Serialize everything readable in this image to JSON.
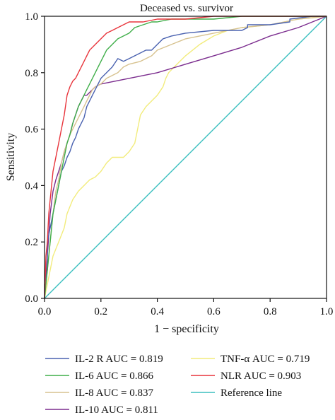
{
  "chart_data": {
    "type": "line",
    "title": "Deceased vs. survivor",
    "xlabel": "1 − specificity",
    "ylabel": "Sensitivity",
    "xlim": [
      0,
      1
    ],
    "ylim": [
      0,
      1
    ],
    "xticks": [
      "0.0",
      "0.2",
      "0.4",
      "0.6",
      "0.8",
      "1.0"
    ],
    "yticks": [
      "0.0",
      "0.2",
      "0.4",
      "0.6",
      "0.8",
      "1.0"
    ],
    "grid": false,
    "legend_position": "bottom",
    "series": [
      {
        "name": "IL-2 R AUC = 0.819",
        "color": "#4a62b0",
        "x": [
          0,
          0,
          0.01,
          0.01,
          0.02,
          0.03,
          0.04,
          0.05,
          0.06,
          0.07,
          0.08,
          0.09,
          0.1,
          0.11,
          0.12,
          0.13,
          0.14,
          0.15,
          0.16,
          0.17,
          0.18,
          0.19,
          0.2,
          0.22,
          0.24,
          0.26,
          0.28,
          0.3,
          0.32,
          0.34,
          0.36,
          0.38,
          0.4,
          0.42,
          0.45,
          0.5,
          0.6,
          0.7,
          0.72,
          0.72,
          0.8,
          0.87,
          0.87,
          0.95,
          1
        ],
        "y": [
          0,
          0.05,
          0.1,
          0.2,
          0.25,
          0.3,
          0.35,
          0.4,
          0.45,
          0.47,
          0.5,
          0.52,
          0.55,
          0.57,
          0.6,
          0.62,
          0.64,
          0.68,
          0.7,
          0.72,
          0.74,
          0.76,
          0.78,
          0.8,
          0.82,
          0.85,
          0.84,
          0.85,
          0.86,
          0.87,
          0.88,
          0.88,
          0.9,
          0.92,
          0.93,
          0.94,
          0.95,
          0.95,
          0.96,
          0.97,
          0.97,
          0.98,
          0.99,
          1,
          1
        ]
      },
      {
        "name": "IL-6 AUC = 0.866",
        "color": "#3fae49",
        "x": [
          0,
          0.01,
          0.02,
          0.03,
          0.04,
          0.05,
          0.06,
          0.07,
          0.08,
          0.09,
          0.1,
          0.11,
          0.12,
          0.13,
          0.14,
          0.15,
          0.16,
          0.18,
          0.2,
          0.21,
          0.22,
          0.24,
          0.26,
          0.28,
          0.3,
          0.32,
          0.35,
          0.38,
          0.4,
          0.45,
          0.5,
          0.6,
          0.7,
          0.8,
          0.9,
          1
        ],
        "y": [
          0,
          0.1,
          0.2,
          0.3,
          0.35,
          0.4,
          0.45,
          0.5,
          0.55,
          0.58,
          0.62,
          0.65,
          0.68,
          0.7,
          0.72,
          0.74,
          0.76,
          0.8,
          0.84,
          0.86,
          0.88,
          0.9,
          0.92,
          0.93,
          0.94,
          0.96,
          0.97,
          0.98,
          0.98,
          0.99,
          0.99,
          0.99,
          1,
          1,
          1,
          1
        ]
      },
      {
        "name": "IL-8 AUC = 0.837",
        "color": "#d7c28f",
        "x": [
          0,
          0.01,
          0.02,
          0.03,
          0.04,
          0.05,
          0.06,
          0.07,
          0.08,
          0.09,
          0.1,
          0.11,
          0.12,
          0.13,
          0.14,
          0.15,
          0.16,
          0.17,
          0.18,
          0.2,
          0.22,
          0.24,
          0.26,
          0.28,
          0.3,
          0.34,
          0.38,
          0.4,
          0.45,
          0.5,
          0.6,
          0.7,
          0.8,
          0.9,
          1
        ],
        "y": [
          0,
          0.1,
          0.2,
          0.3,
          0.38,
          0.42,
          0.48,
          0.52,
          0.55,
          0.58,
          0.6,
          0.62,
          0.64,
          0.66,
          0.68,
          0.7,
          0.72,
          0.74,
          0.75,
          0.76,
          0.78,
          0.79,
          0.8,
          0.82,
          0.83,
          0.84,
          0.86,
          0.88,
          0.9,
          0.92,
          0.94,
          0.96,
          0.97,
          0.99,
          1
        ]
      },
      {
        "name": "IL-10 AUC = 0.811",
        "color": "#7b2c8e",
        "x": [
          0,
          0.01,
          0.02,
          0.03,
          0.04,
          0.05,
          0.06,
          0.07,
          0.08,
          0.09,
          0.1,
          0.11,
          0.12,
          0.13,
          0.14,
          0.15,
          0.16,
          0.18,
          0.2,
          0.3,
          0.4,
          0.5,
          0.6,
          0.7,
          0.8,
          0.9,
          1
        ],
        "y": [
          0,
          0.15,
          0.3,
          0.38,
          0.42,
          0.45,
          0.48,
          0.52,
          0.55,
          0.58,
          0.62,
          0.65,
          0.68,
          0.7,
          0.72,
          0.72,
          0.73,
          0.75,
          0.76,
          0.78,
          0.8,
          0.83,
          0.86,
          0.89,
          0.93,
          0.96,
          1
        ]
      },
      {
        "name": "TNF-α AUC = 0.719",
        "color": "#f2ec7c",
        "x": [
          0,
          0.01,
          0.02,
          0.03,
          0.05,
          0.07,
          0.08,
          0.1,
          0.12,
          0.14,
          0.16,
          0.18,
          0.2,
          0.22,
          0.24,
          0.26,
          0.28,
          0.3,
          0.32,
          0.33,
          0.34,
          0.36,
          0.38,
          0.4,
          0.42,
          0.43,
          0.44,
          0.46,
          0.48,
          0.5,
          0.55,
          0.6,
          0.65,
          0.7,
          0.8,
          0.9,
          1
        ],
        "y": [
          0,
          0.05,
          0.1,
          0.15,
          0.2,
          0.25,
          0.3,
          0.35,
          0.38,
          0.4,
          0.42,
          0.43,
          0.45,
          0.48,
          0.5,
          0.5,
          0.5,
          0.52,
          0.55,
          0.6,
          0.65,
          0.68,
          0.7,
          0.72,
          0.75,
          0.78,
          0.8,
          0.82,
          0.84,
          0.86,
          0.9,
          0.93,
          0.95,
          0.96,
          0.97,
          0.99,
          1
        ]
      },
      {
        "name": "NLR AUC = 0.903",
        "color": "#e8343b",
        "x": [
          0,
          0.005,
          0.01,
          0.015,
          0.02,
          0.03,
          0.04,
          0.05,
          0.06,
          0.07,
          0.08,
          0.09,
          0.1,
          0.11,
          0.12,
          0.13,
          0.14,
          0.15,
          0.16,
          0.18,
          0.2,
          0.22,
          0.24,
          0.26,
          0.28,
          0.3,
          0.35,
          0.4,
          0.5,
          0.6,
          0.7,
          0.8,
          0.9,
          1
        ],
        "y": [
          0,
          0.15,
          0.2,
          0.3,
          0.35,
          0.45,
          0.5,
          0.55,
          0.6,
          0.65,
          0.72,
          0.75,
          0.77,
          0.78,
          0.8,
          0.82,
          0.84,
          0.86,
          0.88,
          0.9,
          0.92,
          0.94,
          0.95,
          0.96,
          0.97,
          0.98,
          0.98,
          0.99,
          0.99,
          1,
          1,
          1,
          1,
          1
        ]
      },
      {
        "name": "Reference line",
        "color": "#3bbfbf",
        "x": [
          0,
          1
        ],
        "y": [
          0,
          1
        ]
      }
    ]
  }
}
